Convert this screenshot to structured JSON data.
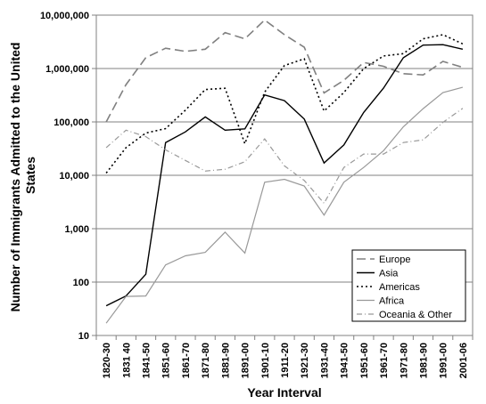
{
  "chart_data": {
    "type": "line",
    "xlabel": "Year Interval",
    "ylabel_lines": [
      "Number of Immigrants Admitted to the United",
      "States"
    ],
    "yscale": "log",
    "ylim": [
      10,
      10000000
    ],
    "grid": "horizontal at decades",
    "legend_position": "bottom-right",
    "y_ticks": [
      {
        "value": 10,
        "label": "10"
      },
      {
        "value": 100,
        "label": "100"
      },
      {
        "value": 1000,
        "label": "1,000"
      },
      {
        "value": 10000,
        "label": "10,000"
      },
      {
        "value": 100000,
        "label": "100,000"
      },
      {
        "value": 1000000,
        "label": "1,000,000"
      },
      {
        "value": 10000000,
        "label": "10,000,000"
      }
    ],
    "x_tick_labels": [
      "1820-30",
      "1831 40",
      "1841-50",
      "1851-60",
      "1861-70",
      "1871-80",
      "1881-90",
      "1891-00",
      "1901-10",
      "1911-20",
      "1921-30",
      "1931-40",
      "1941-50",
      "1951-60",
      "1961-70",
      "1971-80",
      "1981-90",
      "1991-00",
      "2001-06"
    ],
    "series": [
      {
        "name": "Europe",
        "color": "#808080",
        "dash": "10,5",
        "width": 1.6,
        "values": [
          100000,
          500000,
          1600000,
          2400000,
          2100000,
          2300000,
          4700000,
          3600000,
          8100000,
          4300000,
          2500000,
          350000,
          600000,
          1300000,
          1100000,
          800000,
          760000,
          1360000,
          1050000
        ]
      },
      {
        "name": "Asia",
        "color": "#000000",
        "dash": "",
        "width": 1.4,
        "values": [
          36,
          55,
          140,
          41000,
          65000,
          124000,
          70000,
          74000,
          320000,
          250000,
          113000,
          17000,
          37000,
          150000,
          430000,
          1590000,
          2740000,
          2800000,
          2300000
        ]
      },
      {
        "name": "Americas",
        "color": "#000000",
        "dash": "2,3",
        "width": 1.6,
        "values": [
          11000,
          33000,
          62000,
          75000,
          166000,
          404000,
          427000,
          39000,
          362000,
          1140000,
          1520000,
          160000,
          355000,
          997000,
          1720000,
          1900000,
          3600000,
          4300000,
          2900000
        ]
      },
      {
        "name": "Africa",
        "color": "#999999",
        "dash": "",
        "width": 1.2,
        "values": [
          17,
          54,
          55,
          210,
          310,
          360,
          860,
          350,
          7400,
          8400,
          6300,
          1800,
          7400,
          14000,
          29000,
          81000,
          177000,
          355000,
          445000
        ]
      },
      {
        "name": "Oceania & Other",
        "color": "#999999",
        "dash": "6,3,1,3",
        "width": 1.2,
        "values": [
          33000,
          70000,
          53000,
          30000,
          19000,
          12000,
          13000,
          18000,
          48000,
          15000,
          8000,
          3000,
          14000,
          25000,
          25000,
          41000,
          46000,
          98000,
          180000
        ]
      }
    ]
  }
}
